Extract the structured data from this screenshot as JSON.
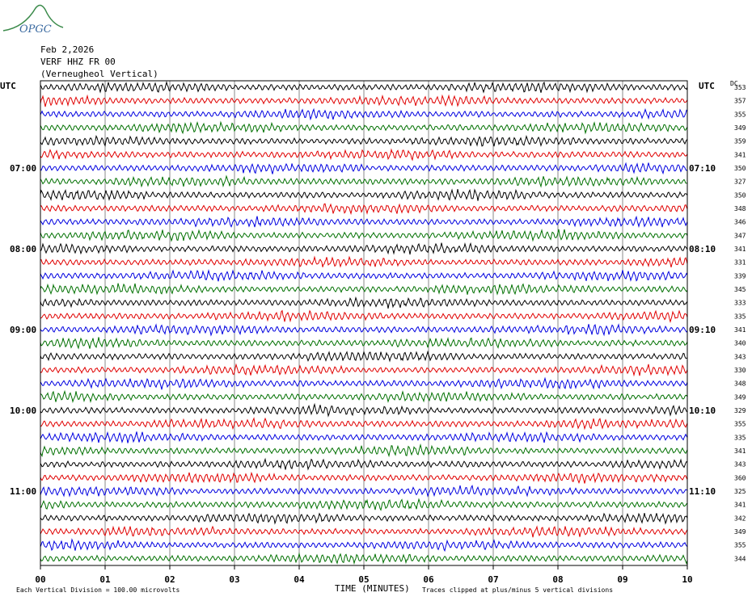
{
  "header": {
    "date": "Feb 2,2026",
    "station": "VERF HHZ FR 00",
    "location": "(Verneugheol Vertical)"
  },
  "logo": {
    "text": "OPGC",
    "color": "#3a8a4a"
  },
  "chart_data": {
    "type": "line",
    "subtype": "helicorder",
    "left_axis_title": "UTC",
    "right_axis_title": "UTC",
    "right_column_title": "DC",
    "xlabel": "TIME (MINUTES)",
    "x_ticks": [
      "00",
      "01",
      "02",
      "03",
      "04",
      "05",
      "06",
      "07",
      "08",
      "09",
      "10"
    ],
    "x_range": [
      0,
      10
    ],
    "left_time_labels": [
      {
        "row": 6,
        "text": "07:00"
      },
      {
        "row": 12,
        "text": "08:00"
      },
      {
        "row": 18,
        "text": "09:00"
      },
      {
        "row": 24,
        "text": "10:00"
      },
      {
        "row": 30,
        "text": "11:00"
      }
    ],
    "right_time_labels": [
      {
        "row": 6,
        "text": "07:10"
      },
      {
        "row": 12,
        "text": "08:10"
      },
      {
        "row": 18,
        "text": "09:10"
      },
      {
        "row": 24,
        "text": "10:10"
      },
      {
        "row": 30,
        "text": "11:10"
      }
    ],
    "dc_offsets": [
      "353",
      "357",
      "355",
      "349",
      "359",
      "341",
      "350",
      "327",
      "350",
      "348",
      "346",
      "347",
      "341",
      "331",
      "339",
      "345",
      "333",
      "335",
      "341",
      "340",
      "343",
      "330",
      "348",
      "349",
      "329",
      "355",
      "335",
      "341",
      "343",
      "360",
      "325",
      "341",
      "342",
      "349",
      "355",
      "344"
    ],
    "trace_colors": [
      "#000000",
      "#e00000",
      "#0000e0",
      "#007000"
    ],
    "footer_left": "Each Vertical Division =  100.00 microvolts",
    "footer_right": "Traces clipped at plus/minus 5 vertical divisions",
    "grid": "vertical"
  }
}
